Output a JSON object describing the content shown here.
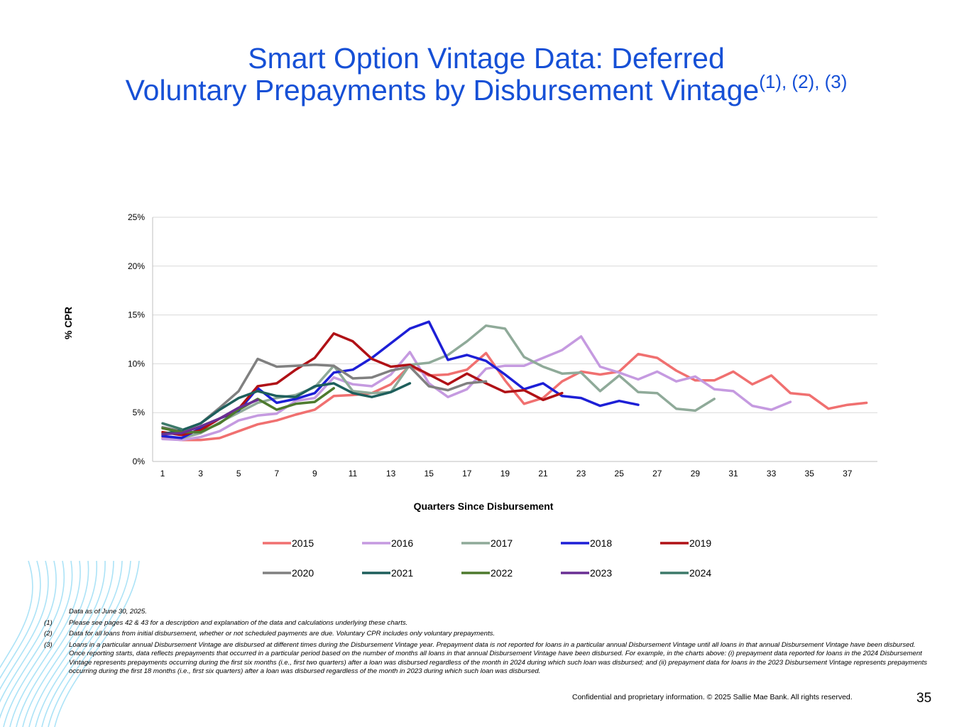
{
  "slide": {
    "title_line1": "Smart Option Vintage Data: Deferred",
    "title_line2": "Voluntary Prepayments by Disbursement Vintage",
    "title_superscript": "(1), (2), (3)",
    "notes": [
      {
        "num": "",
        "text": "Data as of  June 30, 2025."
      },
      {
        "num": "(1)",
        "text": "Please see pages 42 & 43 for a description and explanation of the data and calculations underlying these charts."
      },
      {
        "num": "(2)",
        "text": "Data for all loans from initial disbursement, whether or not scheduled payments are due. Voluntary CPR includes only voluntary prepayments."
      },
      {
        "num": "(3)",
        "text": "Loans in a particular annual Disbursement Vintage are disbursed at different times during the Disbursement Vintage year.  Prepayment data is not reported for loans in a particular annual Disbursement Vintage until all loans in that annual Disbursement Vintage have been disbursed.  Once reporting starts, data reflects prepayments that occurred in a particular period based on the number of months all loans in that annual Disbursement Vintage have been disbursed.  For example, in the charts above:  (i) prepayment data reported for loans in the 2024 Disbursement Vintage represents prepayments occurring during the first six months (i.e., first two quarters) after a loan was disbursed regardless of the month in 2024 during which such loan was disbursed; and (ii) prepayment data for loans in the 2023 Disbursement Vintage represents prepayments occurring during the first 18 months (i.e., first six quarters) after a loan was disbursed regardless of the month in 2023 during which such loan was disbursed."
      }
    ],
    "footer": "Confidential and proprietary information. © 2025 Sallie Mae Bank. All rights reserved.",
    "page_number": "35"
  },
  "chart_data": {
    "type": "line",
    "title": "",
    "xlabel": "Quarters Since Disbursement",
    "ylabel": "% CPR",
    "xlim": [
      1,
      38
    ],
    "ylim": [
      0,
      25
    ],
    "x_ticks": [
      1,
      3,
      5,
      7,
      9,
      11,
      13,
      15,
      17,
      19,
      21,
      23,
      25,
      27,
      29,
      31,
      33,
      35,
      37
    ],
    "y_ticks": [
      0,
      5,
      10,
      15,
      20,
      25
    ],
    "y_tick_labels": [
      "0%",
      "5%",
      "10%",
      "15%",
      "20%",
      "25%"
    ],
    "grid": "horizontal",
    "legend_position": "bottom",
    "series": [
      {
        "name": "2015",
        "color": "#f07070",
        "values": [
          2.4,
          2.2,
          2.2,
          2.4,
          3.1,
          3.8,
          4.2,
          4.8,
          5.3,
          6.7,
          6.8,
          7.0,
          7.9,
          9.8,
          8.8,
          8.9,
          9.4,
          11.1,
          8.3,
          5.9,
          6.5,
          8.2,
          9.2,
          8.9,
          9.2,
          11.0,
          10.6,
          9.3,
          8.3,
          8.3,
          9.2,
          7.9,
          8.8,
          7.0,
          6.8,
          5.4,
          5.8,
          6.0
        ]
      },
      {
        "name": "2016",
        "color": "#c59ae0",
        "values": [
          2.3,
          2.2,
          2.5,
          3.1,
          4.2,
          4.7,
          4.9,
          6.2,
          6.5,
          8.6,
          7.9,
          7.7,
          8.9,
          11.2,
          8.0,
          6.6,
          7.4,
          9.5,
          9.8,
          9.8,
          10.6,
          11.4,
          12.8,
          9.7,
          9.1,
          8.4,
          9.2,
          8.2,
          8.7,
          7.4,
          7.2,
          5.7,
          5.3,
          6.1
        ]
      },
      {
        "name": "2017",
        "color": "#8faa99",
        "values": [
          2.6,
          2.4,
          2.9,
          4.0,
          5.0,
          6.0,
          6.5,
          6.8,
          7.6,
          9.8,
          7.2,
          7.0,
          7.1,
          9.9,
          10.1,
          10.9,
          12.3,
          13.9,
          13.6,
          10.7,
          9.7,
          9.0,
          9.1,
          7.2,
          8.8,
          7.1,
          7.0,
          5.4,
          5.2,
          6.4
        ]
      },
      {
        "name": "2018",
        "color": "#1d1fd6",
        "values": [
          2.6,
          2.4,
          3.4,
          4.4,
          5.2,
          7.5,
          6.0,
          6.4,
          7.0,
          9.1,
          9.4,
          10.6,
          12.1,
          13.6,
          14.3,
          10.4,
          10.9,
          10.3,
          8.9,
          7.4,
          8.0,
          6.7,
          6.5,
          5.7,
          6.2,
          5.8
        ]
      },
      {
        "name": "2019",
        "color": "#b01116",
        "values": [
          3.0,
          2.7,
          3.2,
          4.4,
          5.4,
          7.7,
          8.0,
          9.4,
          10.6,
          13.1,
          12.3,
          10.5,
          9.7,
          9.9,
          8.9,
          7.9,
          9.0,
          8.0,
          7.1,
          7.3,
          6.3,
          7.0
        ]
      },
      {
        "name": "2020",
        "color": "#808080",
        "values": [
          3.5,
          3.1,
          3.9,
          5.5,
          7.2,
          10.5,
          9.7,
          9.8,
          9.9,
          9.8,
          8.5,
          8.6,
          9.3,
          9.7,
          7.7,
          7.3,
          8.0,
          8.2
        ]
      },
      {
        "name": "2021",
        "color": "#1e5f5c",
        "values": [
          2.8,
          3.2,
          3.9,
          5.3,
          6.5,
          7.2,
          6.7,
          6.6,
          7.7,
          8.0,
          7.0,
          6.6,
          7.1,
          8.0
        ]
      },
      {
        "name": "2022",
        "color": "#4e7a2e",
        "values": [
          3.4,
          3.0,
          3.0,
          3.9,
          5.3,
          6.4,
          5.3,
          5.9,
          6.1,
          7.5
        ]
      },
      {
        "name": "2023",
        "color": "#6a2f94",
        "values": [
          2.8,
          2.9,
          3.6,
          4.4,
          5.5,
          6.3
        ]
      },
      {
        "name": "2024",
        "color": "#3d7a6a",
        "values": [
          3.9,
          3.3
        ]
      }
    ]
  },
  "style": {
    "title_color": "#1650d6",
    "gridline_color": "#d9d9d9",
    "axis_color": "#bfbfbf",
    "decoration_color": "#5ac8ef"
  }
}
